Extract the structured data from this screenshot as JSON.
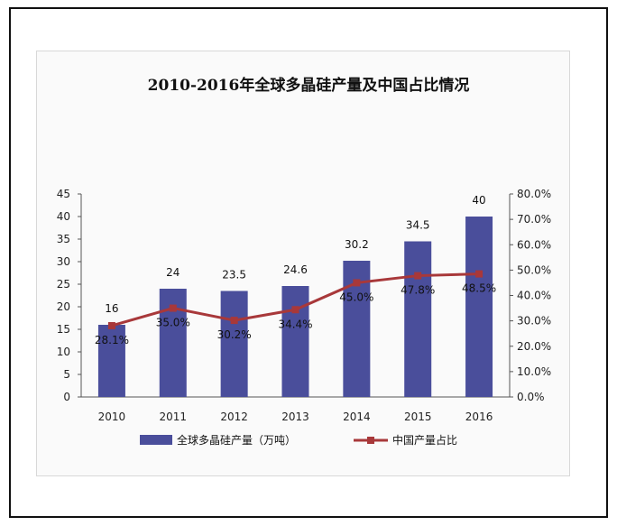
{
  "title": "2010-2016年全球多晶硅产量及中国占比情况",
  "colors": {
    "bar": "#4a4e9b",
    "line": "#a8383a"
  },
  "chart_data": {
    "type": "bar",
    "title": "2010-2016年全球多晶硅产量及中国占比情况",
    "categories": [
      "2010",
      "2011",
      "2012",
      "2013",
      "2014",
      "2015",
      "2016"
    ],
    "ylim": [
      0,
      45
    ],
    "yticks": [
      "0",
      "5",
      "10",
      "15",
      "20",
      "25",
      "30",
      "35",
      "40",
      "45"
    ],
    "y2lim": [
      0,
      80
    ],
    "y2ticks": [
      "0.0%",
      "10.0%",
      "20.0%",
      "30.0%",
      "40.0%",
      "50.0%",
      "60.0%",
      "70.0%",
      "80.0%"
    ],
    "series": [
      {
        "name": "全球多晶硅产量（万吨）",
        "type": "bar",
        "axis": "left",
        "values": [
          16,
          24,
          23.5,
          24.6,
          30.2,
          34.5,
          40
        ],
        "labels": [
          "16",
          "24",
          "23.5",
          "24.6",
          "30.2",
          "34.5",
          "40"
        ]
      },
      {
        "name": "中国产量占比",
        "type": "line",
        "axis": "right",
        "values": [
          28.1,
          35.0,
          30.2,
          34.4,
          45.0,
          47.8,
          48.5
        ],
        "labels": [
          "28.1%",
          "35.0%",
          "30.2%",
          "34.4%",
          "45.0%",
          "47.8%",
          "48.5%"
        ]
      }
    ],
    "legend": "bottom"
  }
}
